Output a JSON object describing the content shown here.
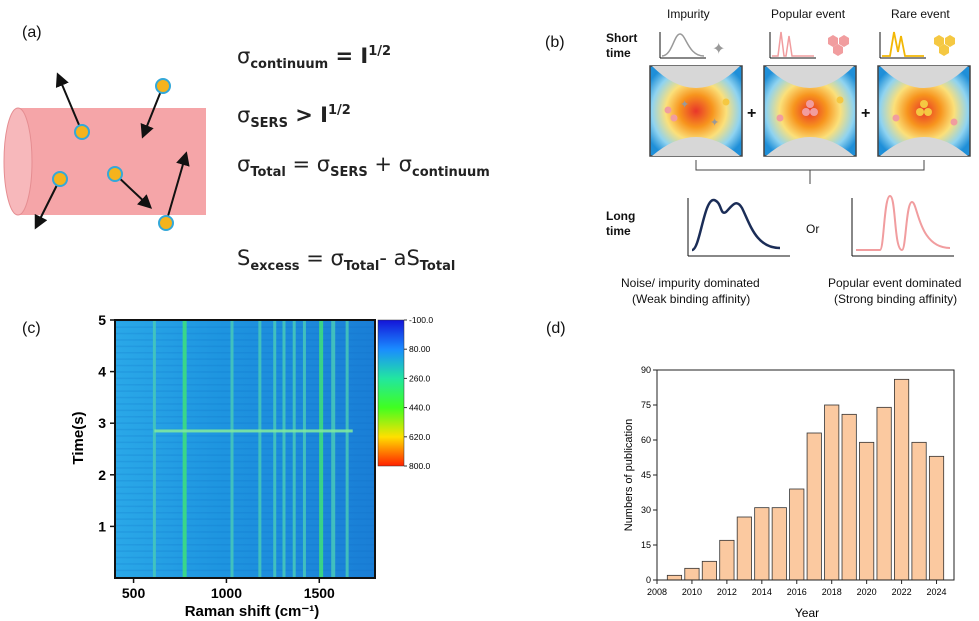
{
  "panels": {
    "a": {
      "label": "(a)",
      "eq1": {
        "sym": "σ",
        "sub": "continuum",
        "rest": " = I",
        "sup": "1/2"
      },
      "eq2": {
        "sym": "σ",
        "sub": "SERS",
        "rest": " > I",
        "sup": "1/2"
      },
      "eq3": {
        "sym": "σ",
        "sub1": "Total",
        "mid1": " = σ",
        "sub2": "SERS",
        "mid2": " + σ",
        "sub3": "continuum"
      },
      "eq4": {
        "sym": "S",
        "sub1": "excess",
        "mid1": " = σ",
        "sub2": "Total",
        "mid2": "- aS",
        "sub3": "Total"
      }
    },
    "b": {
      "label": "(b)",
      "short_time": "Short\ntime",
      "long_time": "Long\ntime",
      "impurity": "Impurity",
      "popular_event": "Popular event",
      "rare_event": "Rare event",
      "plus": "+",
      "or": "Or",
      "caption_left_1": "Noise/ impurity dominated",
      "caption_left_2": "(Weak binding affinity)",
      "caption_right_1": "Popular event dominated",
      "caption_right_2": "(Strong binding affinity)"
    },
    "c": {
      "label": "(c)",
      "xlabel": "Raman shift (cm⁻¹)",
      "ylabel": "Time(s)"
    },
    "d": {
      "label": "(d)",
      "xlabel": "Year",
      "ylabel": "Numbers of publication"
    }
  },
  "chart_data": [
    {
      "type": "heatmap",
      "panel": "c",
      "xlabel": "Raman shift (cm⁻¹)",
      "ylabel": "Time(s)",
      "xlim": [
        400,
        1800
      ],
      "ylim": [
        0,
        5
      ],
      "xticks": [
        500,
        1000,
        1500
      ],
      "yticks": [
        1,
        2,
        3,
        4,
        5
      ],
      "colorbar_ticks": [
        "-100.0",
        "80.00",
        "260.0",
        "440.0",
        "620.0",
        "800.0"
      ],
      "colorbar_colors": [
        "#1414d8",
        "#1a8cff",
        "#22e6a0",
        "#40ff20",
        "#ffe000",
        "#ff2000"
      ],
      "bands_cm": [
        612,
        775,
        1030,
        1180,
        1260,
        1310,
        1365,
        1420,
        1510,
        1575,
        1650
      ],
      "event_time_s": 2.85
    },
    {
      "type": "bar",
      "panel": "d",
      "xlabel": "Year",
      "ylabel": "Numbers of publication",
      "categories": [
        2009,
        2010,
        2011,
        2012,
        2013,
        2014,
        2015,
        2016,
        2017,
        2018,
        2019,
        2020,
        2021,
        2022,
        2023,
        2024
      ],
      "values": [
        2,
        5,
        8,
        17,
        27,
        31,
        31,
        39,
        63,
        75,
        71,
        59,
        74,
        86,
        59,
        53
      ],
      "xticks": [
        2008,
        2010,
        2012,
        2014,
        2016,
        2018,
        2020,
        2022,
        2024
      ],
      "xlim": [
        2008,
        2025
      ],
      "yticks": [
        0,
        15,
        30,
        45,
        60,
        75,
        90
      ],
      "ylim": [
        0,
        90
      ],
      "bar_color": "#fbc9a0"
    }
  ]
}
